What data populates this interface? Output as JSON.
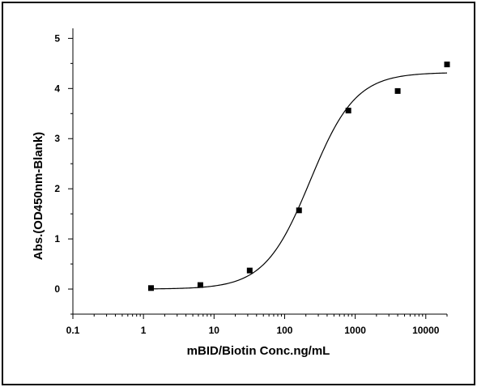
{
  "chart_data": {
    "type": "scatter",
    "xlabel": "mBID/Biotin Conc.ng/mL",
    "ylabel": "Abs.(OD450nm-Blank)",
    "xscale": "log",
    "xlim": [
      0.1,
      20000
    ],
    "ylim": [
      -0.5,
      5.2
    ],
    "x_ticks": [
      {
        "value": 0.1,
        "label": "0.1"
      },
      {
        "value": 1,
        "label": "1"
      },
      {
        "value": 10,
        "label": "10"
      },
      {
        "value": 100,
        "label": "100"
      },
      {
        "value": 1000,
        "label": "1000"
      },
      {
        "value": 10000,
        "label": "10000"
      }
    ],
    "y_ticks": [
      {
        "value": 0,
        "label": "0"
      },
      {
        "value": 1,
        "label": "1"
      },
      {
        "value": 2,
        "label": "2"
      },
      {
        "value": 3,
        "label": "3"
      },
      {
        "value": 4,
        "label": "4"
      },
      {
        "value": 5,
        "label": "5"
      }
    ],
    "series": [
      {
        "points": [
          {
            "x": 1.28,
            "y": 0.02
          },
          {
            "x": 6.4,
            "y": 0.08
          },
          {
            "x": 32,
            "y": 0.37
          },
          {
            "x": 160,
            "y": 1.57
          },
          {
            "x": 800,
            "y": 3.56
          },
          {
            "x": 4000,
            "y": 3.95
          },
          {
            "x": 20000,
            "y": 4.48
          }
        ],
        "fit_curve": {
          "model": "4PL",
          "bottom": 0.0,
          "top": 4.32,
          "ec50": 230,
          "hill": 1.35
        }
      }
    ],
    "grid": false,
    "legend": "none"
  }
}
